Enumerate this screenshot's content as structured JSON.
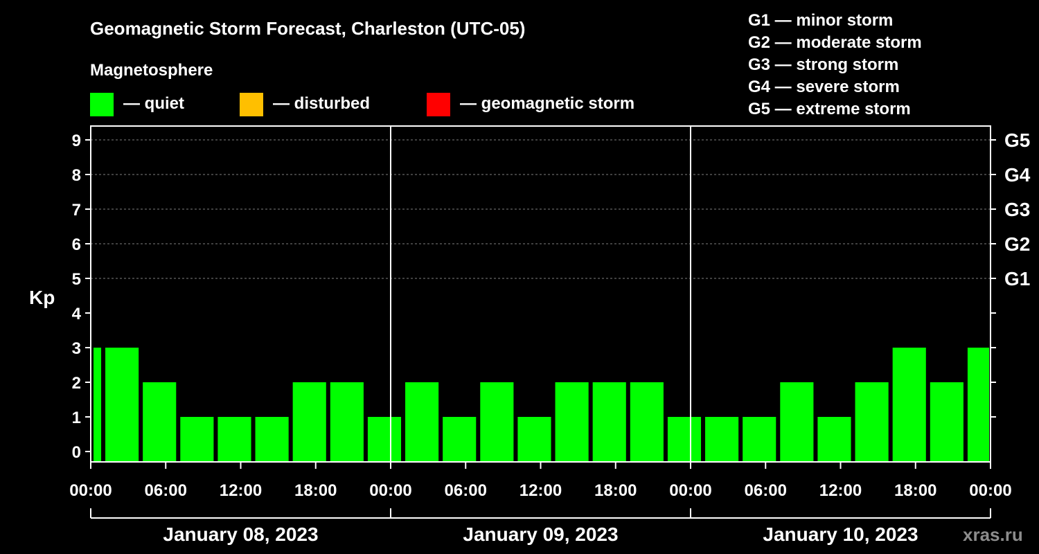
{
  "chart_data": {
    "type": "bar",
    "title": "Geomagnetic Storm Forecast, Charleston (UTC-05)",
    "subtitle": "Magnetosphere",
    "ylabel": "Kp",
    "ylim": [
      0,
      9
    ],
    "y_ticks": [
      "0",
      "1",
      "2",
      "3",
      "4",
      "5",
      "6",
      "7",
      "8",
      "9"
    ],
    "right_ticks": [
      {
        "kp": 5,
        "label": "G1"
      },
      {
        "kp": 6,
        "label": "G2"
      },
      {
        "kp": 7,
        "label": "G3"
      },
      {
        "kp": 8,
        "label": "G4"
      },
      {
        "kp": 9,
        "label": "G5"
      }
    ],
    "legend": [
      {
        "label": "— quiet",
        "color": "#00ff00"
      },
      {
        "label": "— disturbed",
        "color": "#ffbf00"
      },
      {
        "label": "— geomagnetic storm",
        "color": "#ff0000"
      }
    ],
    "g_scale": [
      "G1 — minor storm",
      "G2 — moderate storm",
      "G3 — strong storm",
      "G4 — severe storm",
      "G5 — extreme storm"
    ],
    "x_range_hours": [
      0,
      72
    ],
    "x_ticks": [
      {
        "hour": 0,
        "label": "00:00"
      },
      {
        "hour": 6,
        "label": "06:00"
      },
      {
        "hour": 12,
        "label": "12:00"
      },
      {
        "hour": 18,
        "label": "18:00"
      },
      {
        "hour": 24,
        "label": "00:00"
      },
      {
        "hour": 30,
        "label": "06:00"
      },
      {
        "hour": 36,
        "label": "12:00"
      },
      {
        "hour": 42,
        "label": "18:00"
      },
      {
        "hour": 48,
        "label": "00:00"
      },
      {
        "hour": 54,
        "label": "06:00"
      },
      {
        "hour": 60,
        "label": "12:00"
      },
      {
        "hour": 66,
        "label": "18:00"
      },
      {
        "hour": 72,
        "label": "00:00"
      }
    ],
    "dates": [
      {
        "label": "January 08, 2023",
        "start": 0,
        "end": 24
      },
      {
        "label": "January 09, 2023",
        "start": 24,
        "end": 48
      },
      {
        "label": "January 10, 2023",
        "start": 48,
        "end": 72
      }
    ],
    "bars": [
      {
        "start": 0,
        "end": 1,
        "kp": 3,
        "level": "quiet"
      },
      {
        "start": 1,
        "end": 4,
        "kp": 3,
        "level": "quiet"
      },
      {
        "start": 4,
        "end": 7,
        "kp": 2,
        "level": "quiet"
      },
      {
        "start": 7,
        "end": 10,
        "kp": 1,
        "level": "quiet"
      },
      {
        "start": 10,
        "end": 13,
        "kp": 1,
        "level": "quiet"
      },
      {
        "start": 13,
        "end": 16,
        "kp": 1,
        "level": "quiet"
      },
      {
        "start": 16,
        "end": 19,
        "kp": 2,
        "level": "quiet"
      },
      {
        "start": 19,
        "end": 22,
        "kp": 2,
        "level": "quiet"
      },
      {
        "start": 22,
        "end": 25,
        "kp": 1,
        "level": "quiet"
      },
      {
        "start": 25,
        "end": 28,
        "kp": 2,
        "level": "quiet"
      },
      {
        "start": 28,
        "end": 31,
        "kp": 1,
        "level": "quiet"
      },
      {
        "start": 31,
        "end": 34,
        "kp": 2,
        "level": "quiet"
      },
      {
        "start": 34,
        "end": 37,
        "kp": 1,
        "level": "quiet"
      },
      {
        "start": 37,
        "end": 40,
        "kp": 2,
        "level": "quiet"
      },
      {
        "start": 40,
        "end": 43,
        "kp": 2,
        "level": "quiet"
      },
      {
        "start": 43,
        "end": 46,
        "kp": 2,
        "level": "quiet"
      },
      {
        "start": 46,
        "end": 49,
        "kp": 1,
        "level": "quiet"
      },
      {
        "start": 49,
        "end": 52,
        "kp": 1,
        "level": "quiet"
      },
      {
        "start": 52,
        "end": 55,
        "kp": 1,
        "level": "quiet"
      },
      {
        "start": 55,
        "end": 58,
        "kp": 2,
        "level": "quiet"
      },
      {
        "start": 58,
        "end": 61,
        "kp": 1,
        "level": "quiet"
      },
      {
        "start": 61,
        "end": 64,
        "kp": 2,
        "level": "quiet"
      },
      {
        "start": 64,
        "end": 67,
        "kp": 3,
        "level": "quiet"
      },
      {
        "start": 67,
        "end": 70,
        "kp": 2,
        "level": "quiet"
      },
      {
        "start": 70,
        "end": 72,
        "kp": 3,
        "level": "quiet"
      }
    ]
  },
  "watermark": "xras.ru",
  "colors": {
    "quiet": "#00ff00",
    "disturbed": "#ffbf00",
    "storm": "#ff0000",
    "grid": "#7f7f7f",
    "axis": "#ffffff"
  }
}
